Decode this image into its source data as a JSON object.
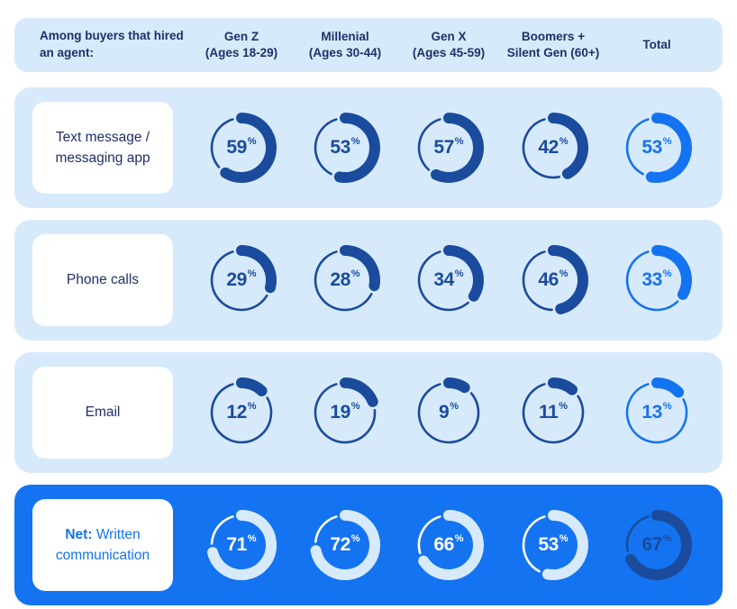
{
  "colors": {
    "row_background_light": "#d7eafb",
    "accent_blue": "#1473f0",
    "navy": "#1a4b9d",
    "heading_text": "#202f6a",
    "white": "#ffffff"
  },
  "header": {
    "label": "Among buyers that hired an agent:",
    "columns": [
      {
        "label": "Gen Z",
        "sub": "(Ages 18-29)"
      },
      {
        "label": "Millenial",
        "sub": "(Ages 30-44)"
      },
      {
        "label": "Gen X",
        "sub": "(Ages 45-59)"
      },
      {
        "label": "Boomers +",
        "sub": "Silent Gen (60+)"
      },
      {
        "label": "Total",
        "sub": ""
      }
    ]
  },
  "chart_data": {
    "type": "donut-grid",
    "unit": "%",
    "categories": [
      "Gen Z (Ages 18-29)",
      "Millenial (Ages 30-44)",
      "Gen X (Ages 45-59)",
      "Boomers + Silent Gen (60+)",
      "Total"
    ],
    "rows": [
      {
        "label": "Text message / messaging app",
        "style": "light",
        "values": [
          59,
          53,
          57,
          42,
          53
        ]
      },
      {
        "label": "Phone calls",
        "style": "light",
        "values": [
          29,
          28,
          34,
          46,
          33
        ]
      },
      {
        "label": "Email",
        "style": "light",
        "values": [
          12,
          19,
          9,
          11,
          13
        ]
      },
      {
        "label_prefix": "Net:",
        "label": "Written communication",
        "style": "accent",
        "values": [
          71,
          72,
          66,
          53,
          67
        ]
      }
    ],
    "value_range": [
      0,
      100
    ],
    "legend": "none",
    "notes": "Each donut: thick rounded arc = percentage starting at 12 o'clock clockwise; thin ring = remainder. Total column rendered in accent blue; bottom net row on accent background with pale arcs, total cell in navy."
  }
}
